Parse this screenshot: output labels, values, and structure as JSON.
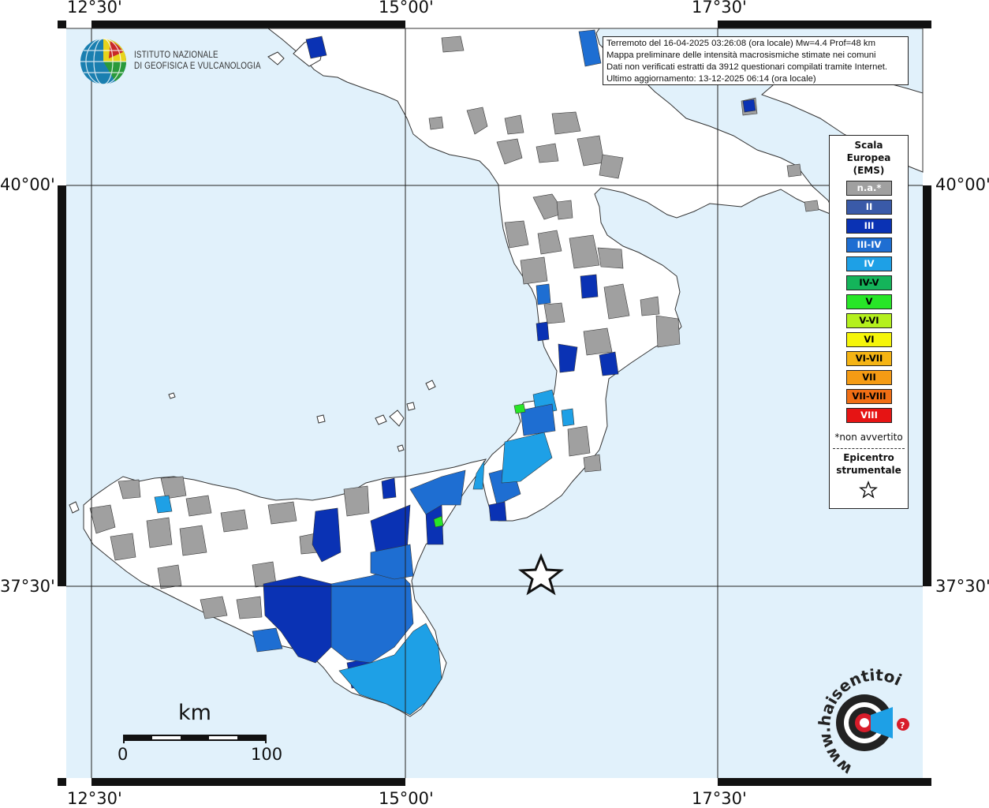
{
  "map": {
    "logo": {
      "org_line1": "ISTITUTO NAZIONALE",
      "org_line2": "DI GEOFISICA E VULCANOLOGIA"
    },
    "info": {
      "line1": "Terremoto del 16-04-2025 03:26:08 (ora locale) Mw=4.4 Prof=48 km",
      "line2": "Mappa preliminare delle intensità macrosismiche stimate nei comuni",
      "line3": "Dati non verificati estratti da 3912 questionari compilati tramite Internet.",
      "line4": "Ultimo aggiornamento: 13-12-2025 06:14 (ora locale)"
    },
    "lon_labels": [
      "12°30'",
      "15°00'",
      "17°30'"
    ],
    "lat_labels": [
      "40°00'",
      "37°30'"
    ],
    "scale_bar": {
      "unit": "km",
      "min": "0",
      "max": "100"
    },
    "watermark": {
      "text": "www.haisentitoilterremoto.it",
      "icon": "earthquake-target-icon"
    },
    "epicenter": {
      "icon": "star-icon",
      "lat": 37.52,
      "lon": 15.97
    }
  },
  "legend": {
    "title_line1": "Scala",
    "title_line2": "Europea",
    "title_line3": "(EMS)",
    "items": [
      {
        "label": "n.a.*",
        "color": "#a0a0a0",
        "text_color": "#ffffff"
      },
      {
        "label": "II",
        "color": "#3a5aa8",
        "text_color": "#ffffff"
      },
      {
        "label": "III",
        "color": "#0a32b4",
        "text_color": "#ffffff"
      },
      {
        "label": "III-IV",
        "color": "#1e6ed2",
        "text_color": "#ffffff"
      },
      {
        "label": "IV",
        "color": "#1ea0e6",
        "text_color": "#ffffff"
      },
      {
        "label": "IV-V",
        "color": "#14b45a",
        "text_color": "#000000"
      },
      {
        "label": "V",
        "color": "#28e628",
        "text_color": "#000000"
      },
      {
        "label": "V-VI",
        "color": "#b4f01e",
        "text_color": "#000000"
      },
      {
        "label": "VI",
        "color": "#f5f50a",
        "text_color": "#000000"
      },
      {
        "label": "VI-VII",
        "color": "#f5b414",
        "text_color": "#000000"
      },
      {
        "label": "VII",
        "color": "#f59b14",
        "text_color": "#000000"
      },
      {
        "label": "VII-VIII",
        "color": "#f06e14",
        "text_color": "#000000"
      },
      {
        "label": "VIII",
        "color": "#e61414",
        "text_color": "#ffffff"
      }
    ],
    "note": "*non avvertito",
    "epicenter_line1": "Epicentro",
    "epicenter_line2": "strumentale"
  },
  "colors": {
    "sea": "#e1f1fb",
    "land": "#ffffff",
    "grid": "#222222"
  }
}
